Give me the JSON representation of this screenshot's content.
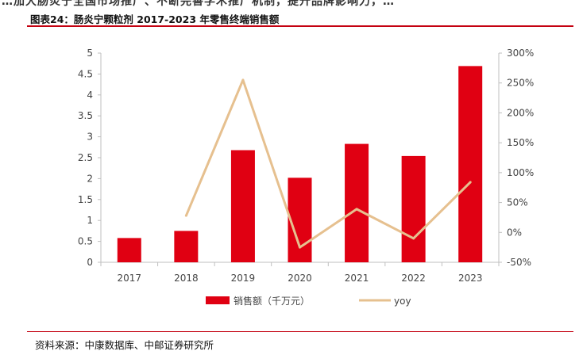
{
  "header": {
    "clipped_text": "…加大肠炎宁全国市场推广、不断完善学术推广机制，提升品牌影响力，…"
  },
  "figure": {
    "title": "图表24：肠炎宁颗粒剂 2017-2023 年零售终端销售额",
    "source": "资料来源：中康数据库、中邮证券研究所"
  },
  "chart_data": {
    "type": "bar+line",
    "categories": [
      "2017",
      "2018",
      "2019",
      "2020",
      "2021",
      "2022",
      "2023"
    ],
    "series": [
      {
        "name": "销售额（千万元）",
        "type": "bar",
        "axis": "left",
        "color": "#e00012",
        "values": [
          0.58,
          0.75,
          2.68,
          2.02,
          2.83,
          2.54,
          4.69
        ]
      },
      {
        "name": "yoy",
        "type": "line",
        "axis": "right",
        "color": "#e6c08f",
        "values": [
          null,
          28,
          255,
          -25,
          39,
          -10,
          84
        ]
      }
    ],
    "y_left": {
      "min": 0,
      "max": 5,
      "ticks": [
        "0",
        "0.5",
        "1",
        "1.5",
        "2",
        "2.5",
        "3",
        "3.5",
        "4",
        "4.5",
        "5"
      ]
    },
    "y_right": {
      "min": -50,
      "max": 300,
      "ticks": [
        "-50%",
        "0%",
        "50%",
        "100%",
        "150%",
        "200%",
        "250%",
        "300%"
      ]
    },
    "grid": false,
    "legend": "bottom"
  }
}
